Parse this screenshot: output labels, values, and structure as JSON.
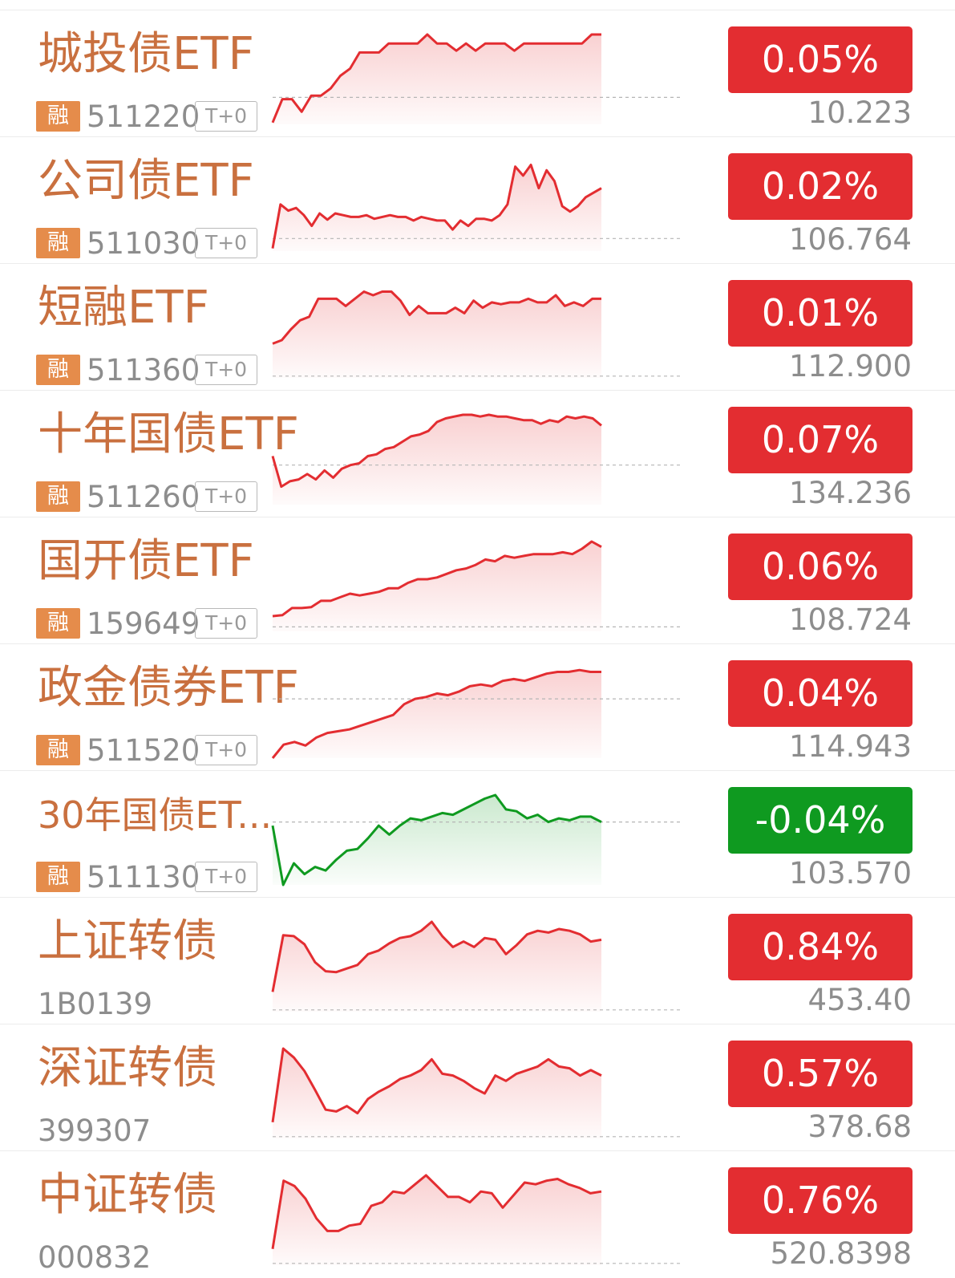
{
  "colors": {
    "name": "#c9703f",
    "badge": "#e58c4b",
    "up": "#e32d31",
    "down": "#0f9a20",
    "muted": "#8d8d8d"
  },
  "rows": [
    {
      "name": "城投债ETF",
      "badge": "融",
      "code": "511220",
      "tag": "T+0",
      "change": "0.05%",
      "price": "10.223",
      "direction": "up",
      "spark": {
        "baseline": 0.7,
        "points": [
          0.98,
          0.72,
          0.72,
          0.86,
          0.68,
          0.68,
          0.6,
          0.46,
          0.38,
          0.2,
          0.2,
          0.2,
          0.1,
          0.1,
          0.1,
          0.1,
          0.0,
          0.1,
          0.1,
          0.18,
          0.1,
          0.18,
          0.1,
          0.1,
          0.1,
          0.18,
          0.1,
          0.1,
          0.1,
          0.1,
          0.1,
          0.1,
          0.1,
          0.0,
          0.0
        ]
      }
    },
    {
      "name": "公司债ETF",
      "badge": "融",
      "code": "511030",
      "tag": "T+0",
      "change": "0.02%",
      "price": "106.764",
      "direction": "up",
      "spark": {
        "baseline": 0.86,
        "points": [
          0.97,
          0.48,
          0.55,
          0.52,
          0.6,
          0.72,
          0.58,
          0.65,
          0.58,
          0.6,
          0.62,
          0.62,
          0.6,
          0.64,
          0.62,
          0.6,
          0.62,
          0.62,
          0.66,
          0.62,
          0.64,
          0.66,
          0.66,
          0.76,
          0.66,
          0.72,
          0.64,
          0.64,
          0.66,
          0.6,
          0.48,
          0.06,
          0.16,
          0.04,
          0.3,
          0.1,
          0.22,
          0.5,
          0.56,
          0.5,
          0.4,
          0.35,
          0.3
        ]
      }
    },
    {
      "name": "短融ETF",
      "badge": "融",
      "code": "511360",
      "tag": "T+0",
      "change": "0.01%",
      "price": "112.900",
      "direction": "up",
      "spark": {
        "baseline": 0.98,
        "points": [
          0.62,
          0.58,
          0.46,
          0.36,
          0.32,
          0.12,
          0.12,
          0.12,
          0.2,
          0.12,
          0.04,
          0.08,
          0.04,
          0.04,
          0.14,
          0.3,
          0.2,
          0.28,
          0.28,
          0.28,
          0.22,
          0.28,
          0.14,
          0.22,
          0.16,
          0.18,
          0.16,
          0.16,
          0.12,
          0.16,
          0.16,
          0.08,
          0.2,
          0.16,
          0.2,
          0.12,
          0.12
        ]
      }
    },
    {
      "name": "十年国债ETF",
      "badge": "融",
      "code": "511260",
      "tag": "T+0",
      "change": "0.07%",
      "price": "134.236",
      "direction": "up",
      "spark": {
        "baseline": 0.56,
        "points": [
          0.46,
          0.8,
          0.74,
          0.72,
          0.66,
          0.72,
          0.62,
          0.7,
          0.6,
          0.56,
          0.54,
          0.46,
          0.44,
          0.38,
          0.36,
          0.3,
          0.24,
          0.22,
          0.18,
          0.08,
          0.04,
          0.02,
          0.0,
          0.0,
          0.02,
          0.0,
          0.02,
          0.02,
          0.04,
          0.06,
          0.06,
          0.1,
          0.06,
          0.08,
          0.02,
          0.04,
          0.02,
          0.04,
          0.12
        ]
      }
    },
    {
      "name": "国开债ETF",
      "badge": "融",
      "code": "159649",
      "tag": "T+0",
      "change": "0.06%",
      "price": "108.724",
      "direction": "up",
      "spark": {
        "baseline": 0.95,
        "points": [
          0.83,
          0.82,
          0.74,
          0.74,
          0.73,
          0.66,
          0.66,
          0.62,
          0.58,
          0.6,
          0.58,
          0.56,
          0.52,
          0.52,
          0.46,
          0.42,
          0.42,
          0.4,
          0.36,
          0.32,
          0.3,
          0.26,
          0.2,
          0.22,
          0.16,
          0.18,
          0.16,
          0.14,
          0.14,
          0.14,
          0.12,
          0.14,
          0.08,
          0.0,
          0.06
        ]
      }
    },
    {
      "name": "政金债券ETF",
      "badge": "融",
      "code": "511520",
      "tag": "T+0",
      "change": "0.04%",
      "price": "114.943",
      "direction": "up",
      "spark": {
        "baseline": 0.34,
        "points": [
          1.0,
          0.85,
          0.82,
          0.86,
          0.77,
          0.72,
          0.7,
          0.68,
          0.64,
          0.6,
          0.56,
          0.52,
          0.4,
          0.34,
          0.32,
          0.28,
          0.3,
          0.26,
          0.2,
          0.18,
          0.2,
          0.14,
          0.12,
          0.14,
          0.1,
          0.06,
          0.04,
          0.04,
          0.02,
          0.04,
          0.04
        ]
      }
    },
    {
      "name": "30年国债ETF",
      "display_name": "30年国债ET...",
      "badge": "融",
      "code": "511130",
      "tag": "T+0",
      "change": "-0.04%",
      "price": "103.570",
      "direction": "down",
      "spark": {
        "baseline": 0.3,
        "points": [
          0.34,
          1.0,
          0.76,
          0.88,
          0.8,
          0.84,
          0.72,
          0.62,
          0.6,
          0.48,
          0.34,
          0.44,
          0.34,
          0.26,
          0.28,
          0.24,
          0.2,
          0.22,
          0.16,
          0.1,
          0.04,
          0.0,
          0.16,
          0.18,
          0.26,
          0.22,
          0.3,
          0.26,
          0.28,
          0.24,
          0.24,
          0.3
        ]
      }
    },
    {
      "name": "上证转债",
      "code": "1B0139",
      "change": "0.84%",
      "price": "453.40",
      "direction": "up",
      "spark": {
        "baseline": 0.98,
        "points": [
          0.78,
          0.15,
          0.16,
          0.25,
          0.45,
          0.55,
          0.56,
          0.52,
          0.48,
          0.36,
          0.32,
          0.24,
          0.18,
          0.16,
          0.1,
          0.0,
          0.16,
          0.28,
          0.22,
          0.28,
          0.18,
          0.2,
          0.36,
          0.26,
          0.14,
          0.1,
          0.12,
          0.08,
          0.1,
          0.14,
          0.22,
          0.2
        ]
      }
    },
    {
      "name": "深证转债",
      "code": "399307",
      "change": "0.57%",
      "price": "378.68",
      "direction": "up",
      "spark": {
        "baseline": 0.98,
        "points": [
          0.82,
          0.0,
          0.1,
          0.25,
          0.46,
          0.68,
          0.7,
          0.64,
          0.72,
          0.56,
          0.48,
          0.42,
          0.34,
          0.3,
          0.24,
          0.12,
          0.28,
          0.3,
          0.36,
          0.44,
          0.5,
          0.3,
          0.36,
          0.28,
          0.24,
          0.2,
          0.12,
          0.2,
          0.22,
          0.3,
          0.24,
          0.3
        ]
      }
    },
    {
      "name": "中证转债",
      "code": "000832",
      "change": "0.76%",
      "price": "520.8398",
      "direction": "up",
      "spark": {
        "baseline": 0.98,
        "points": [
          0.82,
          0.06,
          0.12,
          0.26,
          0.48,
          0.62,
          0.62,
          0.56,
          0.54,
          0.34,
          0.3,
          0.18,
          0.2,
          0.1,
          0.0,
          0.12,
          0.24,
          0.24,
          0.3,
          0.18,
          0.2,
          0.36,
          0.22,
          0.08,
          0.1,
          0.06,
          0.04,
          0.1,
          0.14,
          0.2,
          0.18
        ]
      }
    }
  ]
}
